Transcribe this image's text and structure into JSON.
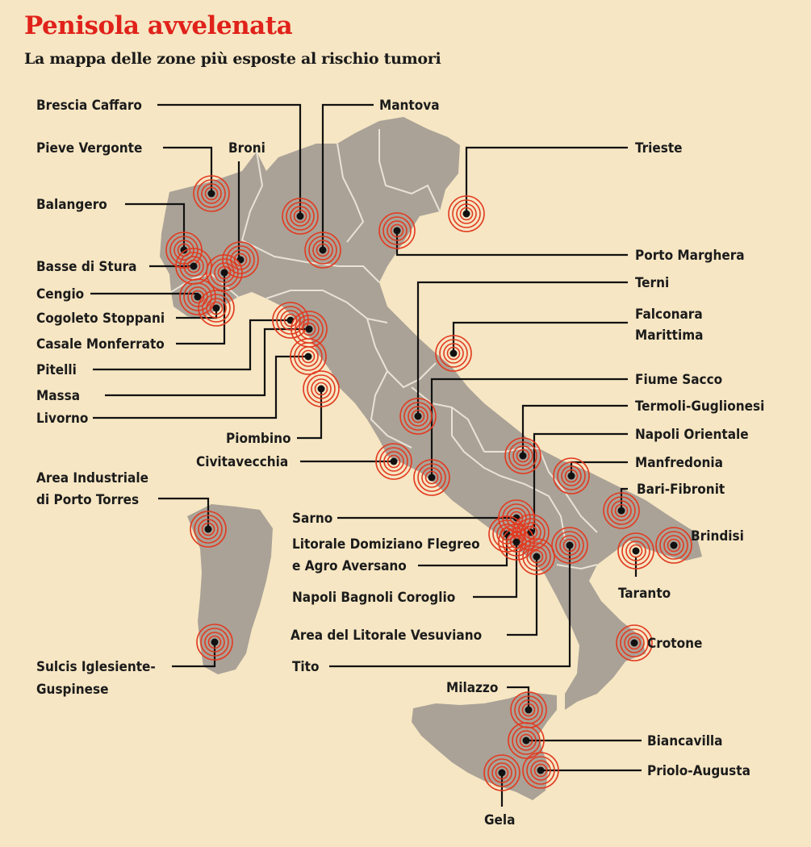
{
  "header": {
    "title": "Penisola avvelenata",
    "subtitle": "La mappa delle zone più esposte al rischio tumori"
  },
  "colors": {
    "background": "#f6e6c3",
    "land": "#aaa297",
    "region_border": "#e8e3d6",
    "ring": "#e23a20",
    "dot": "#111111",
    "title": "#e0221a"
  },
  "marker_icon": "concentric-target-rings",
  "sites": [
    {
      "id": "brescia-caffaro",
      "lines": [
        "Brescia Caffaro"
      ]
    },
    {
      "id": "mantova",
      "lines": [
        "Mantova"
      ]
    },
    {
      "id": "pieve-vergonte",
      "lines": [
        "Pieve Vergonte"
      ]
    },
    {
      "id": "broni",
      "lines": [
        "Broni"
      ]
    },
    {
      "id": "trieste",
      "lines": [
        "Trieste"
      ]
    },
    {
      "id": "balangero",
      "lines": [
        "Balangero"
      ]
    },
    {
      "id": "porto-marghera",
      "lines": [
        "Porto Marghera"
      ]
    },
    {
      "id": "basse-di-stura",
      "lines": [
        "Basse di Stura"
      ]
    },
    {
      "id": "terni",
      "lines": [
        "Terni"
      ]
    },
    {
      "id": "cengio",
      "lines": [
        "Cengio"
      ]
    },
    {
      "id": "falconara-marittima",
      "lines": [
        "Falconara",
        "Marittima"
      ]
    },
    {
      "id": "cogoleto-stoppani",
      "lines": [
        "Cogoleto Stoppani"
      ]
    },
    {
      "id": "casale-monferrato",
      "lines": [
        "Casale Monferrato"
      ]
    },
    {
      "id": "pitelli",
      "lines": [
        "Pitelli"
      ]
    },
    {
      "id": "fiume-sacco",
      "lines": [
        "Fiume Sacco"
      ]
    },
    {
      "id": "massa",
      "lines": [
        "Massa"
      ]
    },
    {
      "id": "termoli-guglionesi",
      "lines": [
        "Termoli-Guglionesi"
      ]
    },
    {
      "id": "livorno",
      "lines": [
        "Livorno"
      ]
    },
    {
      "id": "napoli-orientale",
      "lines": [
        "Napoli Orientale"
      ]
    },
    {
      "id": "piombino",
      "lines": [
        "Piombino"
      ]
    },
    {
      "id": "civitavecchia",
      "lines": [
        "Civitavecchia"
      ]
    },
    {
      "id": "manfredonia",
      "lines": [
        "Manfredonia"
      ]
    },
    {
      "id": "porto-torres",
      "lines": [
        "Area Industriale",
        "di Porto Torres"
      ]
    },
    {
      "id": "bari-fibronit",
      "lines": [
        "Bari-Fibronit"
      ]
    },
    {
      "id": "sarno",
      "lines": [
        "Sarno"
      ]
    },
    {
      "id": "brindisi",
      "lines": [
        "Brindisi"
      ]
    },
    {
      "id": "litorale-domiziano",
      "lines": [
        "Litorale Domiziano Flegreo",
        "e Agro Aversano"
      ]
    },
    {
      "id": "taranto",
      "lines": [
        "Taranto"
      ]
    },
    {
      "id": "napoli-bagnoli",
      "lines": [
        "Napoli Bagnoli Coroglio"
      ]
    },
    {
      "id": "litorale-vesuviano",
      "lines": [
        "Area del Litorale  Vesuviano"
      ]
    },
    {
      "id": "crotone",
      "lines": [
        "Crotone"
      ]
    },
    {
      "id": "sulcis",
      "lines": [
        "Sulcis Iglesiente-",
        "Guspinese"
      ]
    },
    {
      "id": "tito",
      "lines": [
        "Tito"
      ]
    },
    {
      "id": "milazzo",
      "lines": [
        "Milazzo"
      ]
    },
    {
      "id": "biancavilla",
      "lines": [
        "Biancavilla"
      ]
    },
    {
      "id": "priolo-augusta",
      "lines": [
        "Priolo-Augusta"
      ]
    },
    {
      "id": "gela",
      "lines": [
        "Gela"
      ]
    }
  ]
}
